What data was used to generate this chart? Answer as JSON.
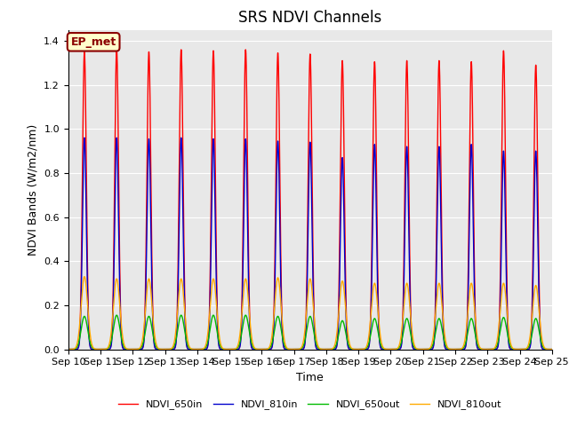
{
  "title": "SRS NDVI Channels",
  "xlabel": "Time",
  "ylabel": "NDVI Bands (W/m2/nm)",
  "ylim": [
    0,
    1.45
  ],
  "bg_color": "#e8e8e8",
  "fig_color": "#ffffff",
  "annotation_text": "EP_met",
  "annotation_bg": "#ffffcc",
  "annotation_border": "#8B0000",
  "legend_entries": [
    "NDVI_650in",
    "NDVI_810in",
    "NDVI_650out",
    "NDVI_810out"
  ],
  "line_colors": [
    "#ff0000",
    "#0000cc",
    "#00bb00",
    "#ffaa00"
  ],
  "start_day": 10,
  "end_day": 25,
  "peak_650in": [
    1.35,
    1.36,
    1.35,
    1.36,
    1.355,
    1.36,
    1.345,
    1.34,
    1.31,
    1.305,
    1.31,
    1.31,
    1.305,
    1.355,
    1.29
  ],
  "peak_810in": [
    0.96,
    0.96,
    0.955,
    0.96,
    0.955,
    0.955,
    0.945,
    0.94,
    0.87,
    0.93,
    0.92,
    0.92,
    0.93,
    0.9,
    0.9
  ],
  "peak_650out": [
    0.15,
    0.155,
    0.15,
    0.155,
    0.155,
    0.155,
    0.15,
    0.15,
    0.13,
    0.14,
    0.14,
    0.14,
    0.14,
    0.145,
    0.14
  ],
  "peak_810out": [
    0.33,
    0.32,
    0.32,
    0.32,
    0.32,
    0.32,
    0.325,
    0.32,
    0.31,
    0.3,
    0.3,
    0.3,
    0.3,
    0.3,
    0.29
  ],
  "sigma_in": 0.06,
  "sigma_out": 0.1,
  "title_fontsize": 12,
  "axis_label_fontsize": 9,
  "tick_fontsize": 8
}
